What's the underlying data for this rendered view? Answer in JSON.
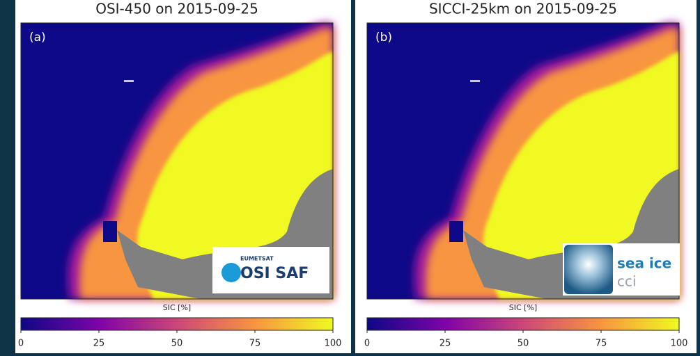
{
  "panels": [
    {
      "title": "OSI-450 on 2015-09-25",
      "label": "(a)",
      "logo": {
        "lines": [
          "EUMETSAT",
          "OSI SAF"
        ]
      },
      "colorbar": {
        "label": "SIC [%]",
        "lim": [
          0,
          100
        ],
        "ticks": [
          0,
          25,
          50,
          75,
          100
        ]
      }
    },
    {
      "title": "SICCI-25km on 2015-09-25",
      "label": "(b)",
      "logo": {
        "lines": [
          "sea ice",
          "cci"
        ]
      },
      "colorbar": {
        "label": "SIC [%]",
        "lim": [
          0,
          100
        ],
        "ticks": [
          0,
          25,
          50,
          75,
          100
        ]
      }
    }
  ]
}
